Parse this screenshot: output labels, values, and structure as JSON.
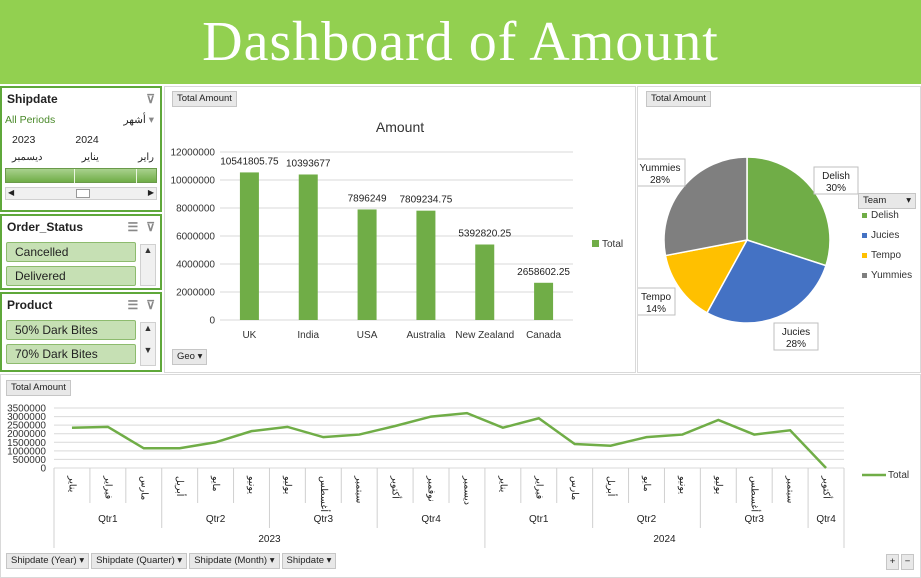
{
  "banner": {
    "title": "Dashboard of Amount"
  },
  "shipdate_slicer": {
    "title": "Shipdate",
    "period": "All Periods",
    "level": "أشهر",
    "years": [
      "2023",
      "2024"
    ],
    "months": [
      "ديسمبر",
      "يناير",
      "راير"
    ]
  },
  "order_status_slicer": {
    "title": "Order_Status",
    "items": [
      "Cancelled",
      "Delivered"
    ]
  },
  "product_slicer": {
    "title": "Product",
    "items": [
      "50% Dark Bites",
      "70% Dark Bites"
    ]
  },
  "bar_chart": {
    "value_button": "Total Amount",
    "axis_button": "Geo",
    "legend": "Total"
  },
  "pie_chart": {
    "value_button": "Total Amount",
    "legend_button": "Team"
  },
  "line_chart": {
    "value_button": "Total Amount",
    "legend": "Total",
    "field_buttons": [
      "Shipdate (Year)",
      "Shipdate (Quarter)",
      "Shipdate (Month)",
      "Shipdate"
    ],
    "plus": "+",
    "minus": "−"
  },
  "chart_data": [
    {
      "type": "bar",
      "title": "Amount",
      "categories": [
        "UK",
        "India",
        "USA",
        "Australia",
        "New Zealand",
        "Canada"
      ],
      "series": [
        {
          "name": "Total",
          "values": [
            10541805.75,
            10393677,
            7896249,
            7809234.75,
            5392820.25,
            2658602.25
          ]
        }
      ],
      "data_labels": [
        "10541805.75",
        "10393677",
        "7896249",
        "7809234.75",
        "5392820.25",
        "2658602.25"
      ],
      "ylim": [
        0,
        12000000
      ],
      "yticks": [
        "0",
        "2000000",
        "4000000",
        "6000000",
        "8000000",
        "10000000",
        "12000000"
      ],
      "color": "#70ad47",
      "grid": true
    },
    {
      "type": "pie",
      "categories": [
        "Delish",
        "Jucies",
        "Tempo",
        "Yummies"
      ],
      "values": [
        30,
        28,
        14,
        28
      ],
      "labels": [
        "Delish\n30%",
        "Jucies\n28%",
        "Tempo\n14%",
        "Yummies\n28%"
      ],
      "colors": [
        "#70ad47",
        "#4472c4",
        "#ffc000",
        "#7f7f7f"
      ],
      "legend": "right"
    },
    {
      "type": "line",
      "years": [
        "2023",
        "2024"
      ],
      "quarters": [
        "Qtr1",
        "Qtr2",
        "Qtr3",
        "Qtr4",
        "Qtr1",
        "Qtr2",
        "Qtr3",
        "Qtr4"
      ],
      "months": [
        "يناير",
        "فبراير",
        "مارس",
        "أبريل",
        "مايو",
        "يونيو",
        "يوليو",
        "أغسطس",
        "سبتمبر",
        "أكتوبر",
        "نوفمبر",
        "ديسمبر",
        "يناير",
        "فبراير",
        "مارس",
        "أبريل",
        "مايو",
        "يونيو",
        "يوليو",
        "أغسطس",
        "سبتمبر",
        "أكتوبر"
      ],
      "values": [
        2350000,
        2400000,
        1150000,
        1150000,
        1500000,
        2150000,
        2400000,
        1800000,
        1950000,
        2450000,
        3000000,
        3200000,
        2350000,
        2900000,
        1400000,
        1300000,
        1800000,
        1950000,
        2800000,
        1950000,
        2200000,
        0
      ],
      "ylim": [
        0,
        3500000
      ],
      "yticks": [
        "0",
        "500000",
        "1000000",
        "1500000",
        "2000000",
        "2500000",
        "3000000",
        "3500000"
      ],
      "color": "#70ad47",
      "grid": true
    }
  ]
}
